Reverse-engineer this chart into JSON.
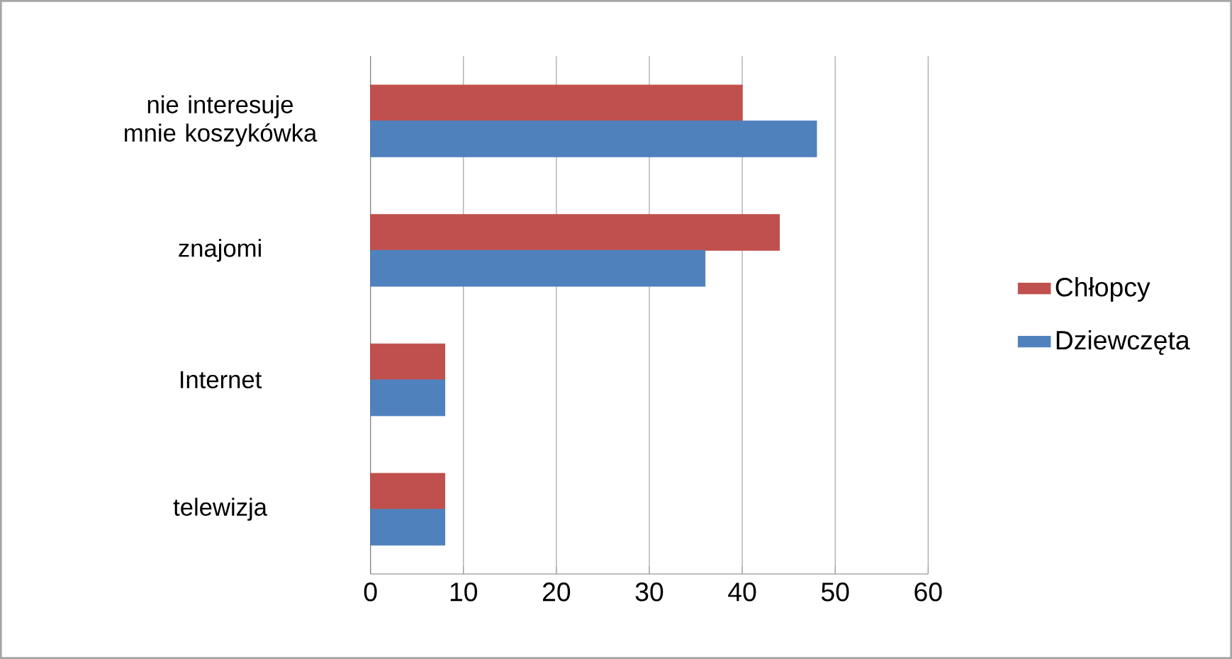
{
  "chart_data": {
    "type": "bar",
    "orientation": "horizontal",
    "categories": [
      "nie interesuje mnie koszykówka",
      "znajomi",
      "Internet",
      "telewizja"
    ],
    "series": [
      {
        "name": "Chłopcy",
        "color": "#c0504d",
        "values": [
          40,
          44,
          8,
          8
        ]
      },
      {
        "name": "Dziewczęta",
        "color": "#4f81bd",
        "values": [
          48,
          36,
          8,
          8
        ]
      }
    ],
    "xlim": [
      0,
      60
    ],
    "xticks": [
      0,
      10,
      20,
      30,
      40,
      50,
      60
    ],
    "grid": "x",
    "legend": "right"
  }
}
